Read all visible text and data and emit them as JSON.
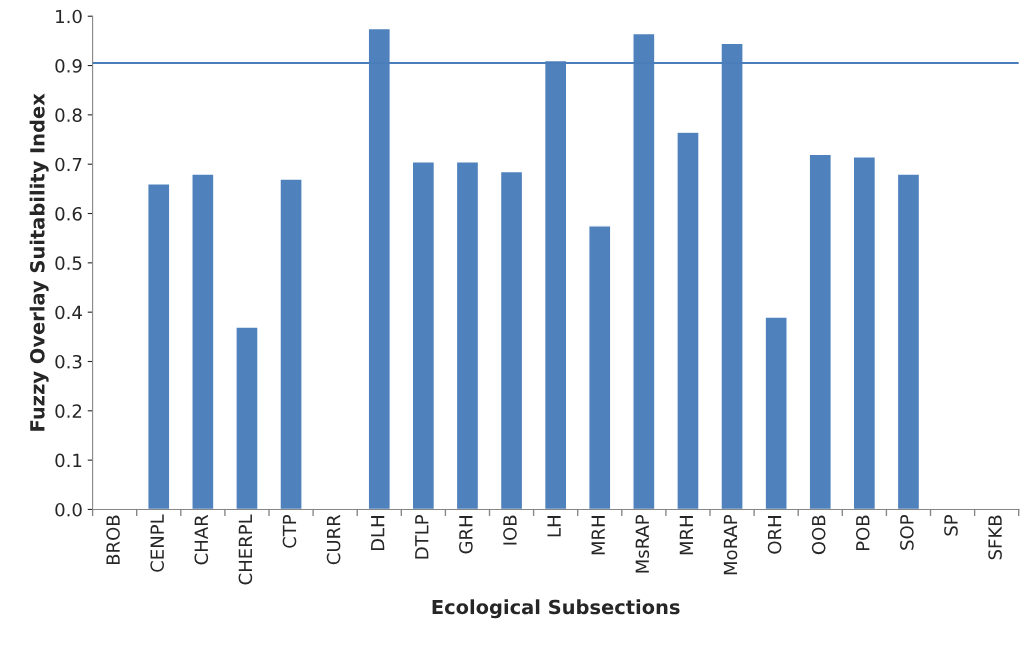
{
  "chart_data": {
    "type": "bar",
    "xlabel": "Ecological Subsections",
    "ylabel": "Fuzzy Overlay Suitability Index",
    "categories": [
      "BROB",
      "CENPL",
      "CHAR",
      "CHERPL",
      "CTP",
      "CURR",
      "DLH",
      "DTLP",
      "GRH",
      "IOB",
      "LH",
      "MRH",
      "MsRAP",
      "MRH",
      "MoRAP",
      "ORH",
      "OOB",
      "POB",
      "SOP",
      "SP",
      "SFKB"
    ],
    "values": [
      null,
      0.66,
      0.68,
      0.37,
      0.67,
      null,
      0.975,
      0.705,
      0.705,
      0.685,
      0.91,
      0.575,
      0.965,
      0.765,
      0.945,
      0.39,
      0.72,
      0.715,
      0.68,
      null,
      null
    ],
    "color": "#4f81bd",
    "ylim": [
      0,
      1.0
    ],
    "yticks": [
      {
        "value": 0,
        "label": "0.0"
      },
      {
        "value": 0.1,
        "label": "0.1"
      },
      {
        "value": 0.2,
        "label": "0.2"
      },
      {
        "value": 0.3,
        "label": "0.3"
      },
      {
        "value": 0.4,
        "label": "0.4"
      },
      {
        "value": 0.5,
        "label": "0.5"
      },
      {
        "value": 0.6,
        "label": "0.6"
      },
      {
        "value": 0.7,
        "label": "0.7"
      },
      {
        "value": 0.8,
        "label": "0.8"
      },
      {
        "value": 0.9,
        "label": "0.9"
      },
      {
        "value": 1.0,
        "label": "1.0"
      }
    ],
    "ref_lines": [
      {
        "axis": "y",
        "value": 0.905,
        "color": "#4a7ebb"
      }
    ],
    "grid": false,
    "legend": false
  }
}
